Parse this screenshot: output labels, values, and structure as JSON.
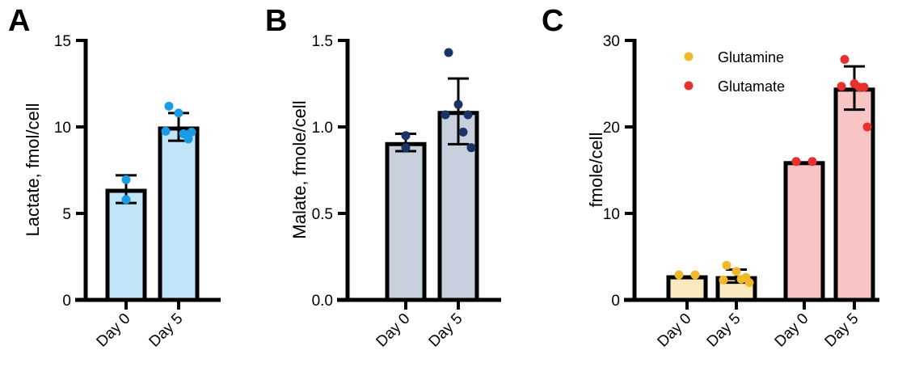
{
  "chart_data": [
    {
      "panel_label": "A",
      "type": "bar",
      "ylabel": "Lactate, fmol/cell",
      "ylim": [
        0,
        15
      ],
      "yticks": [
        "0",
        "5",
        "10",
        "15"
      ],
      "categories": [
        "Day 0",
        "Day 5"
      ],
      "bar_color": "#bfe3f7",
      "point_color": "#1a9be6",
      "series": [
        {
          "category": "Day 0",
          "mean": 6.4,
          "error": [
            5.6,
            7.2
          ],
          "points": [
            6.95,
            5.8
          ]
        },
        {
          "category": "Day 5",
          "mean": 10.0,
          "error": [
            9.2,
            10.8
          ],
          "points": [
            11.2,
            10.8,
            9.3,
            9.75,
            9.6,
            9.7
          ]
        }
      ]
    },
    {
      "panel_label": "B",
      "type": "bar",
      "ylabel": "Malate, fmole/cell",
      "ylim": [
        0,
        1.5
      ],
      "yticks": [
        "0.0",
        "0.5",
        "1.0",
        "1.5"
      ],
      "categories": [
        "Day 0",
        "Day 5"
      ],
      "bar_color": "#c8d0de",
      "point_color": "#1b3466",
      "series": [
        {
          "category": "Day 0",
          "mean": 0.91,
          "error": [
            0.86,
            0.96
          ],
          "points": [
            0.95,
            0.88
          ]
        },
        {
          "category": "Day 5",
          "mean": 1.09,
          "error": [
            0.9,
            1.28
          ],
          "points": [
            1.43,
            1.13,
            1.07,
            1.07,
            0.97,
            0.88
          ]
        }
      ]
    },
    {
      "panel_label": "C",
      "type": "bar",
      "ylabel": "fmole/cell",
      "ylim": [
        0,
        30
      ],
      "yticks": [
        "0",
        "10",
        "20",
        "30"
      ],
      "categories": [
        "Day 0",
        "Day 5",
        "Day 0",
        "Day 5"
      ],
      "legend": [
        {
          "name": "Glutamine",
          "color": "#f0b92a"
        },
        {
          "name": "Glutamate",
          "color": "#e8312f"
        }
      ],
      "legend_position": "top-left",
      "series": [
        {
          "category": "Day 0",
          "group": "Glutamine",
          "bar_color": "#fbeac0",
          "point_color": "#f0b92a",
          "mean": 2.8,
          "error": null,
          "points": [
            2.9,
            2.9
          ]
        },
        {
          "category": "Day 5",
          "group": "Glutamine",
          "bar_color": "#fbeac0",
          "point_color": "#f0b92a",
          "mean": 2.7,
          "error": [
            2.0,
            3.5
          ],
          "points": [
            4.0,
            3.3,
            2.6,
            2.3,
            2.4,
            2.0
          ]
        },
        {
          "category": "Day 0",
          "group": "Glutamate",
          "bar_color": "#f9c4c4",
          "point_color": "#e8312f",
          "mean": 16.0,
          "error": null,
          "points": [
            16.0,
            16.0
          ]
        },
        {
          "category": "Day 5",
          "group": "Glutamate",
          "bar_color": "#f9c4c4",
          "point_color": "#e8312f",
          "mean": 24.5,
          "error": [
            22.0,
            27.0
          ],
          "points": [
            27.8,
            25.0,
            24.6,
            24.7,
            24.6,
            20.0
          ]
        }
      ]
    }
  ]
}
